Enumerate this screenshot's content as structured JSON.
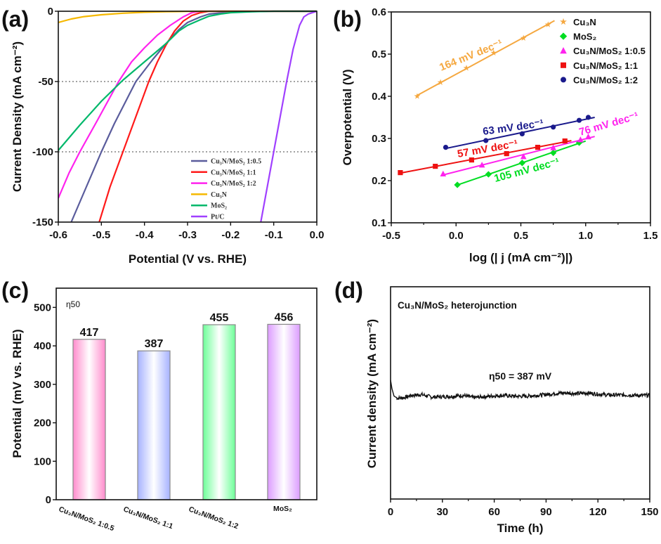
{
  "chart_data": [
    {
      "panel": "(a)",
      "type": "line",
      "xlabel": "Potential (V vs. RHE)",
      "ylabel": "Current Density (mA cm⁻²)",
      "xlim": [
        -0.6,
        0.0
      ],
      "ylim": [
        -150,
        0
      ],
      "xticks": [
        -0.6,
        -0.5,
        -0.4,
        -0.3,
        -0.2,
        -0.1,
        0.0
      ],
      "yticks": [
        0,
        -50,
        -100,
        -150
      ],
      "reference_lines_y": [
        -50,
        -100
      ],
      "legend_position": "bottom-right",
      "series": [
        {
          "name": "Cu₃N/MoS₂ 1:0.5",
          "color": "#5a5c9c",
          "points": [
            [
              -0.57,
              -150
            ],
            [
              -0.535,
              -125
            ],
            [
              -0.5,
              -100
            ],
            [
              -0.47,
              -80
            ],
            [
              -0.45,
              -68
            ],
            [
              -0.42,
              -50
            ],
            [
              -0.38,
              -34
            ],
            [
              -0.35,
              -23
            ],
            [
              -0.32,
              -13
            ],
            [
              -0.3,
              -8
            ],
            [
              -0.27,
              -4
            ],
            [
              -0.25,
              -2
            ],
            [
              -0.2,
              -0.5
            ],
            [
              -0.1,
              0
            ],
            [
              0,
              0
            ]
          ]
        },
        {
          "name": "Cu₃N/MoS₂ 1:1",
          "color": "#ff1a1a",
          "points": [
            [
              -0.505,
              -150
            ],
            [
              -0.48,
              -125
            ],
            [
              -0.45,
              -100
            ],
            [
              -0.42,
              -75
            ],
            [
              -0.39,
              -50
            ],
            [
              -0.37,
              -36
            ],
            [
              -0.35,
              -24
            ],
            [
              -0.33,
              -14
            ],
            [
              -0.31,
              -7
            ],
            [
              -0.29,
              -3
            ],
            [
              -0.27,
              -1
            ],
            [
              -0.25,
              0
            ],
            [
              0,
              0
            ]
          ]
        },
        {
          "name": "Cu₃N/MoS₂ 1:2",
          "color": "#ff22ee",
          "points": [
            [
              -0.6,
              -133
            ],
            [
              -0.575,
              -115
            ],
            [
              -0.55,
              -100
            ],
            [
              -0.51,
              -78
            ],
            [
              -0.46,
              -50
            ],
            [
              -0.43,
              -36
            ],
            [
              -0.4,
              -26
            ],
            [
              -0.37,
              -17
            ],
            [
              -0.34,
              -10
            ],
            [
              -0.31,
              -4
            ],
            [
              -0.29,
              -1
            ],
            [
              -0.27,
              0
            ],
            [
              0,
              0
            ]
          ]
        },
        {
          "name": "Cu₃N",
          "color": "#f5b800",
          "points": [
            [
              -0.6,
              -8
            ],
            [
              -0.57,
              -5.5
            ],
            [
              -0.54,
              -3.8
            ],
            [
              -0.5,
              -2.5
            ],
            [
              -0.45,
              -1.4
            ],
            [
              -0.4,
              -0.7
            ],
            [
              -0.35,
              -0.3
            ],
            [
              -0.3,
              -0.1
            ],
            [
              -0.25,
              0
            ],
            [
              0,
              0
            ]
          ]
        },
        {
          "name": "MoS₂",
          "color": "#00b86b",
          "points": [
            [
              -0.6,
              -99
            ],
            [
              -0.55,
              -81
            ],
            [
              -0.5,
              -64
            ],
            [
              -0.45,
              -49
            ],
            [
              -0.4,
              -36
            ],
            [
              -0.35,
              -23
            ],
            [
              -0.32,
              -14
            ],
            [
              -0.3,
              -10
            ],
            [
              -0.27,
              -6
            ],
            [
              -0.25,
              -3.5
            ],
            [
              -0.22,
              -1.8
            ],
            [
              -0.2,
              -1
            ],
            [
              -0.15,
              -0.3
            ],
            [
              -0.1,
              0
            ],
            [
              0,
              0
            ]
          ]
        },
        {
          "name": "Pt/C",
          "color": "#a040ff",
          "points": [
            [
              -0.13,
              -150
            ],
            [
              -0.115,
              -125
            ],
            [
              -0.1,
              -100
            ],
            [
              -0.085,
              -75
            ],
            [
              -0.07,
              -50
            ],
            [
              -0.055,
              -27
            ],
            [
              -0.04,
              -10
            ],
            [
              -0.03,
              -4
            ],
            [
              -0.02,
              -2
            ],
            [
              -0.01,
              -1
            ],
            [
              0,
              0
            ]
          ]
        }
      ]
    },
    {
      "panel": "(b)",
      "type": "scatter",
      "xlabel": "log (| j (mA cm⁻²)|)",
      "ylabel": "Overpotential (V)",
      "xlim": [
        -0.5,
        1.5
      ],
      "ylim": [
        0.1,
        0.6
      ],
      "xticks": [
        -0.5,
        0.0,
        0.5,
        1.0,
        1.5
      ],
      "yticks": [
        0.1,
        0.2,
        0.3,
        0.4,
        0.5,
        0.6
      ],
      "legend_position": "top-right",
      "series": [
        {
          "name": "Cu₃N",
          "color": "#f5a840",
          "marker": "star",
          "slope_label": "164 mV dec⁻¹",
          "points": [
            [
              -0.3,
              0.4
            ],
            [
              -0.12,
              0.433
            ],
            [
              0.08,
              0.467
            ],
            [
              0.29,
              0.503
            ],
            [
              0.52,
              0.538
            ],
            [
              0.71,
              0.57
            ]
          ]
        },
        {
          "name": "MoS₂",
          "color": "#00dd22",
          "marker": "diamond",
          "slope_label": "105 mV dec⁻¹",
          "points": [
            [
              0.01,
              0.19
            ],
            [
              0.25,
              0.215
            ],
            [
              0.51,
              0.242
            ],
            [
              0.75,
              0.266
            ],
            [
              0.95,
              0.29
            ]
          ]
        },
        {
          "name": "Cu₃N/MoS₂ 1:0.5",
          "color": "#ff22ee",
          "marker": "triangle",
          "slope_label": "76 mV dec⁻¹",
          "points": [
            [
              -0.1,
              0.216
            ],
            [
              0.2,
              0.237
            ],
            [
              0.52,
              0.257
            ],
            [
              0.75,
              0.278
            ],
            [
              0.96,
              0.297
            ],
            [
              1.02,
              0.304
            ]
          ]
        },
        {
          "name": "Cu₃N/MoS₂ 1:1",
          "color": "#ee1111",
          "marker": "square",
          "slope_label": "57 mV dec⁻¹",
          "points": [
            [
              -0.43,
              0.219
            ],
            [
              -0.16,
              0.234
            ],
            [
              0.12,
              0.249
            ],
            [
              0.39,
              0.264
            ],
            [
              0.63,
              0.279
            ],
            [
              0.84,
              0.294
            ]
          ]
        },
        {
          "name": "Cu₃N/MoS₂ 1:2",
          "color": "#1a1a8c",
          "marker": "circle",
          "slope_label": "63 mV dec⁻¹",
          "points": [
            [
              -0.08,
              0.279
            ],
            [
              0.23,
              0.295
            ],
            [
              0.51,
              0.311
            ],
            [
              0.75,
              0.327
            ],
            [
              0.95,
              0.343
            ],
            [
              1.02,
              0.35
            ]
          ]
        }
      ]
    },
    {
      "panel": "(c)",
      "type": "bar",
      "annotation": "η50",
      "ylabel": "Potential (mV vs. RHE)",
      "ylim": [
        0,
        550
      ],
      "yticks": [
        0,
        100,
        200,
        300,
        400,
        500
      ],
      "categories": [
        "Cu₃N/MoS₂ 1:0.5",
        "Cu₃N/MoS₂ 1:1",
        "Cu₃N/MoS₂ 1:2",
        "MoS₂"
      ],
      "values": [
        417,
        387,
        455,
        456
      ],
      "colors": [
        "#ff8ccc",
        "#a6b2ff",
        "#6dff98",
        "#dc9cff"
      ]
    },
    {
      "panel": "(d)",
      "type": "line",
      "title": "Cu₃N/MoS₂ heterojunction",
      "annotation": "η50 = 387 mV",
      "xlabel": "Time (h)",
      "ylabel": "Current density (mA cm⁻²)",
      "xlim": [
        0,
        150
      ],
      "ylim": [
        0,
        1
      ],
      "xticks": [
        0,
        30,
        60,
        90,
        120,
        150
      ],
      "series": [
        {
          "name": "Cu₃N/MoS₂ heterojunction",
          "color": "#111111",
          "points": [
            [
              0,
              0.56
            ],
            [
              0.8,
              0.52
            ],
            [
              2,
              0.485
            ],
            [
              4,
              0.475
            ],
            [
              8,
              0.478
            ],
            [
              12,
              0.488
            ],
            [
              18,
              0.492
            ],
            [
              24,
              0.48
            ],
            [
              30,
              0.482
            ],
            [
              36,
              0.484
            ],
            [
              42,
              0.488
            ],
            [
              48,
              0.478
            ],
            [
              54,
              0.482
            ],
            [
              60,
              0.486
            ],
            [
              66,
              0.488
            ],
            [
              72,
              0.484
            ],
            [
              78,
              0.484
            ],
            [
              84,
              0.488
            ],
            [
              90,
              0.492
            ],
            [
              96,
              0.498
            ],
            [
              102,
              0.5
            ],
            [
              108,
              0.496
            ],
            [
              114,
              0.5
            ],
            [
              120,
              0.494
            ],
            [
              126,
              0.49
            ],
            [
              132,
              0.49
            ],
            [
              138,
              0.49
            ],
            [
              144,
              0.488
            ],
            [
              150,
              0.488
            ]
          ]
        }
      ]
    }
  ]
}
